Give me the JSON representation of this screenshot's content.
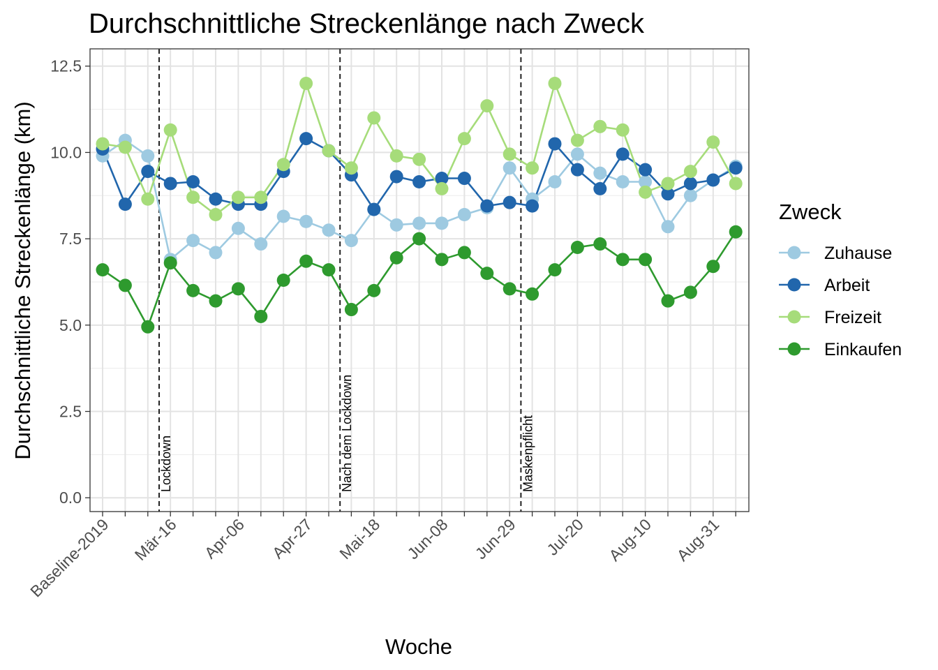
{
  "chart_data": {
    "type": "line",
    "title": "Durchschnittliche Streckenlänge nach Zweck",
    "xlabel": "Woche",
    "ylabel": "Durchschnittliche Streckenlänge (km)",
    "ylim": [
      -0.4,
      13
    ],
    "y_ticks": [
      "0.0",
      "2.5",
      "5.0",
      "7.5",
      "10.0",
      "12.5"
    ],
    "y_tick_values": [
      0,
      2.5,
      5,
      7.5,
      10,
      12.5
    ],
    "x_count": 29,
    "x_tick_labels": [
      {
        "index": 0,
        "label": "Baseline-2019"
      },
      {
        "index": 3,
        "label": "Mär-16"
      },
      {
        "index": 6,
        "label": "Apr-06"
      },
      {
        "index": 9,
        "label": "Apr-27"
      },
      {
        "index": 12,
        "label": "Mai-18"
      },
      {
        "index": 15,
        "label": "Jun-08"
      },
      {
        "index": 18,
        "label": "Jun-29"
      },
      {
        "index": 21,
        "label": "Jul-20"
      },
      {
        "index": 24,
        "label": "Aug-10"
      },
      {
        "index": 27,
        "label": "Aug-31"
      }
    ],
    "grid": true,
    "legend": {
      "title": "Zweck",
      "position": "right"
    },
    "series": [
      {
        "name": "Zuhause",
        "color": "#9ecae1",
        "values": [
          9.9,
          10.35,
          9.9,
          6.9,
          7.45,
          7.1,
          7.8,
          7.35,
          8.15,
          8.0,
          7.75,
          7.45,
          8.35,
          7.9,
          7.95,
          7.95,
          8.2,
          8.4,
          9.55,
          8.65,
          9.15,
          9.95,
          9.4,
          9.15,
          9.15,
          7.85,
          8.75,
          9.2,
          9.6
        ]
      },
      {
        "name": "Arbeit",
        "color": "#2166ac",
        "values": [
          10.1,
          8.5,
          9.45,
          9.1,
          9.15,
          8.65,
          8.5,
          8.5,
          9.45,
          10.4,
          10.05,
          9.35,
          8.35,
          9.3,
          9.15,
          9.25,
          9.25,
          8.45,
          8.55,
          8.45,
          10.25,
          9.5,
          8.95,
          9.95,
          9.5,
          8.8,
          9.1,
          9.2,
          9.55
        ]
      },
      {
        "name": "Freizeit",
        "color": "#a6dc7a",
        "values": [
          10.25,
          10.15,
          8.65,
          10.65,
          8.7,
          8.2,
          8.7,
          8.7,
          9.65,
          12.0,
          10.05,
          9.55,
          11.0,
          9.9,
          9.8,
          8.95,
          10.4,
          11.35,
          9.95,
          9.55,
          12.0,
          10.35,
          10.75,
          10.65,
          8.85,
          9.1,
          9.45,
          10.3,
          9.1
        ]
      },
      {
        "name": "Einkaufen",
        "color": "#2e9a2e",
        "values": [
          6.6,
          6.15,
          4.95,
          6.8,
          6.0,
          5.7,
          6.05,
          5.25,
          6.3,
          6.85,
          6.6,
          5.45,
          6.0,
          6.95,
          7.5,
          6.9,
          7.1,
          6.5,
          6.05,
          5.9,
          6.6,
          7.25,
          7.35,
          6.9,
          6.9,
          5.7,
          5.95,
          6.7,
          7.7
        ]
      }
    ],
    "annotations": [
      {
        "label": "Lockdown",
        "x": 2.5
      },
      {
        "label": "Nach dem Lockdown",
        "x": 10.5
      },
      {
        "label": "Maskenpflicht",
        "x": 18.5
      }
    ]
  }
}
